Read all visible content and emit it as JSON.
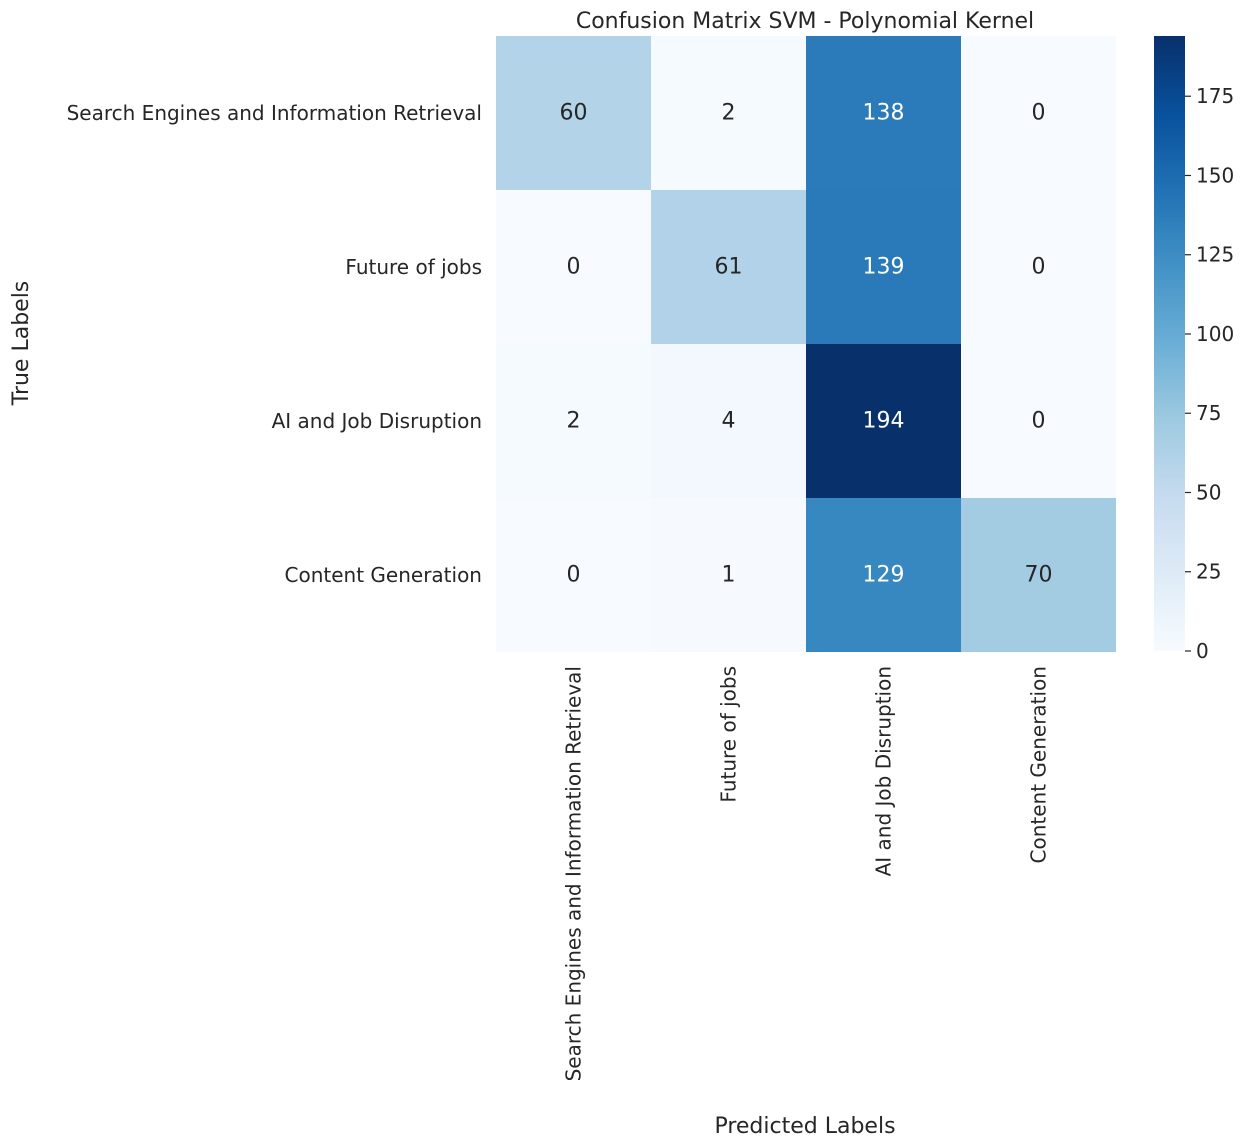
{
  "chart_data": {
    "type": "heatmap",
    "title": "Confusion Matrix SVM - Polynomial Kernel",
    "xlabel": "Predicted Labels",
    "ylabel": "True Labels",
    "x_categories": [
      "Search Engines and Information Retrieval",
      "Future of jobs",
      "AI and Job Disruption",
      "Content Generation"
    ],
    "y_categories": [
      "Search Engines and Information Retrieval",
      "Future of jobs",
      "AI and Job Disruption",
      "Content Generation"
    ],
    "matrix": [
      [
        60,
        2,
        138,
        0
      ],
      [
        0,
        61,
        139,
        0
      ],
      [
        2,
        4,
        194,
        0
      ],
      [
        0,
        1,
        129,
        70
      ]
    ],
    "colormap": "Blues",
    "colorbar": {
      "min": 0,
      "max": 194,
      "ticks": [
        0,
        25,
        50,
        75,
        100,
        125,
        150,
        175
      ]
    },
    "colors": {
      "low": "#f7fbff",
      "high": "#08306b",
      "text_dark": "#262626",
      "text_light": "#ffffff"
    }
  }
}
